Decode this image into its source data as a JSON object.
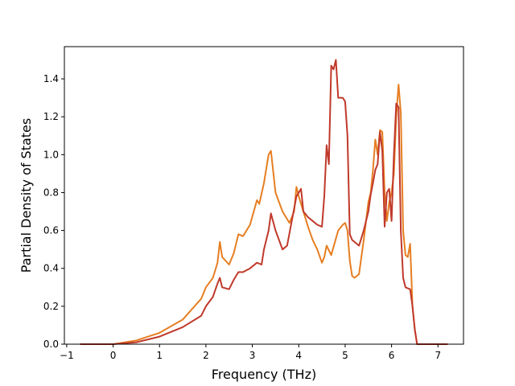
{
  "chart_data": {
    "type": "line",
    "title": "",
    "xlabel": "Frequency (THz)",
    "ylabel": "Partial Density of States",
    "xlim": [
      -1.05,
      7.55
    ],
    "ylim": [
      0.0,
      1.57
    ],
    "xticks": [
      -1,
      0,
      1,
      2,
      3,
      4,
      5,
      6,
      7
    ],
    "yticks": [
      0.0,
      0.2,
      0.4,
      0.6,
      0.8,
      1.0,
      1.2,
      1.4
    ],
    "ytick_labels": [
      "0.0",
      "0.2",
      "0.4",
      "0.6",
      "0.8",
      "1.0",
      "1.2",
      "1.4"
    ],
    "grid": false,
    "legend": "none",
    "series": [
      {
        "color": "#e67e22",
        "x": [
          -0.7,
          0.0,
          0.5,
          1.0,
          1.5,
          1.9,
          2.0,
          2.15,
          2.25,
          2.3,
          2.35,
          2.5,
          2.6,
          2.7,
          2.8,
          2.95,
          3.1,
          3.15,
          3.25,
          3.35,
          3.4,
          3.5,
          3.65,
          3.8,
          3.9,
          3.95,
          4.0,
          4.1,
          4.2,
          4.3,
          4.4,
          4.5,
          4.55,
          4.6,
          4.7,
          4.85,
          4.95,
          5.0,
          5.05,
          5.1,
          5.15,
          5.2,
          5.3,
          5.4,
          5.5,
          5.55,
          5.6,
          5.65,
          5.7,
          5.75,
          5.8,
          5.85,
          5.9,
          5.95,
          6.0,
          6.05,
          6.1,
          6.15,
          6.2,
          6.25,
          6.3,
          6.35,
          6.4,
          6.45,
          6.5,
          6.55,
          6.6,
          7.2
        ],
        "y": [
          0.0,
          0.0,
          0.02,
          0.06,
          0.13,
          0.24,
          0.3,
          0.35,
          0.43,
          0.54,
          0.46,
          0.42,
          0.48,
          0.58,
          0.57,
          0.63,
          0.76,
          0.74,
          0.85,
          1.0,
          1.02,
          0.8,
          0.7,
          0.64,
          0.7,
          0.83,
          0.78,
          0.7,
          0.62,
          0.55,
          0.5,
          0.43,
          0.46,
          0.52,
          0.47,
          0.6,
          0.63,
          0.64,
          0.6,
          0.44,
          0.36,
          0.35,
          0.37,
          0.55,
          0.75,
          0.8,
          0.92,
          1.08,
          1.0,
          1.13,
          1.12,
          0.8,
          0.65,
          0.75,
          0.8,
          0.9,
          1.2,
          1.37,
          1.22,
          0.6,
          0.47,
          0.46,
          0.53,
          0.2,
          0.08,
          0.0,
          0.0,
          0.0
        ]
      },
      {
        "color": "#c0392b",
        "x": [
          -0.7,
          0.0,
          0.5,
          1.0,
          1.5,
          1.9,
          2.0,
          2.15,
          2.25,
          2.3,
          2.35,
          2.5,
          2.6,
          2.7,
          2.8,
          2.95,
          3.1,
          3.2,
          3.25,
          3.35,
          3.4,
          3.5,
          3.65,
          3.75,
          3.85,
          3.95,
          4.05,
          4.1,
          4.2,
          4.3,
          4.4,
          4.5,
          4.55,
          4.6,
          4.65,
          4.7,
          4.75,
          4.8,
          4.85,
          4.95,
          5.0,
          5.05,
          5.1,
          5.15,
          5.3,
          5.4,
          5.5,
          5.55,
          5.6,
          5.65,
          5.7,
          5.75,
          5.8,
          5.85,
          5.9,
          5.95,
          6.0,
          6.05,
          6.1,
          6.15,
          6.2,
          6.25,
          6.3,
          6.4,
          6.45,
          6.5,
          6.55,
          6.6,
          7.2
        ],
        "y": [
          0.0,
          0.0,
          0.01,
          0.04,
          0.09,
          0.15,
          0.2,
          0.25,
          0.32,
          0.35,
          0.3,
          0.29,
          0.34,
          0.38,
          0.38,
          0.4,
          0.43,
          0.42,
          0.5,
          0.6,
          0.69,
          0.6,
          0.5,
          0.52,
          0.65,
          0.78,
          0.82,
          0.7,
          0.67,
          0.65,
          0.63,
          0.62,
          0.78,
          1.05,
          0.95,
          1.47,
          1.45,
          1.5,
          1.3,
          1.3,
          1.28,
          1.1,
          0.58,
          0.55,
          0.52,
          0.6,
          0.7,
          0.79,
          0.85,
          0.92,
          0.95,
          1.12,
          1.02,
          0.62,
          0.8,
          0.82,
          0.65,
          1.0,
          1.27,
          1.25,
          0.6,
          0.35,
          0.3,
          0.29,
          0.2,
          0.08,
          0.0,
          0.0,
          0.0
        ]
      }
    ]
  }
}
